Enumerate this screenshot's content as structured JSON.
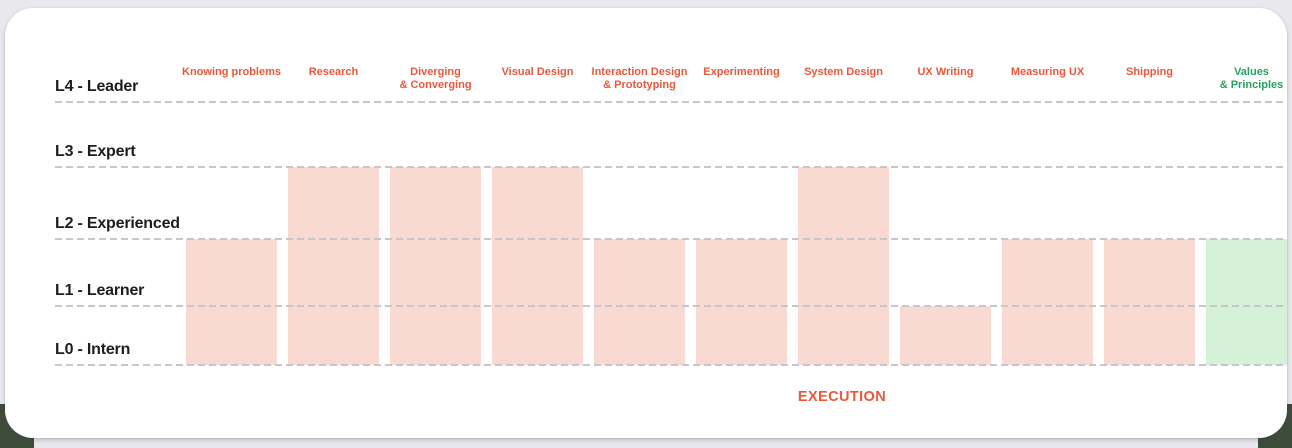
{
  "page": {
    "background_color": "#e8e8ed",
    "corner_accent_color": "#3d4d39",
    "card_color": "#ffffff"
  },
  "chart": {
    "group_label": "EXECUTION",
    "levels": [
      {
        "value": 4,
        "label": "L4 - Leader"
      },
      {
        "value": 3,
        "label": "L3 - Expert"
      },
      {
        "value": 2,
        "label": "L2 - Experienced"
      },
      {
        "value": 1,
        "label": "L1 - Learner"
      },
      {
        "value": 0,
        "label": "L0 - Intern"
      }
    ],
    "columns": [
      {
        "label": "Knowing problems",
        "lines": [
          "Knowing problems"
        ],
        "level": 2,
        "group": "execution"
      },
      {
        "label": "Research",
        "lines": [
          "Research"
        ],
        "level": 3,
        "group": "execution"
      },
      {
        "label": "Diverging & Converging",
        "lines": [
          "Diverging",
          "& Converging"
        ],
        "level": 3,
        "group": "execution"
      },
      {
        "label": "Visual Design",
        "lines": [
          "Visual Design"
        ],
        "level": 3,
        "group": "execution"
      },
      {
        "label": "Interaction Design & Prototyping",
        "lines": [
          "Interaction Design",
          "& Prototyping"
        ],
        "level": 2,
        "group": "execution"
      },
      {
        "label": "Experimenting",
        "lines": [
          "Experimenting"
        ],
        "level": 2,
        "group": "execution"
      },
      {
        "label": "System Design",
        "lines": [
          "System Design"
        ],
        "level": 3,
        "group": "execution"
      },
      {
        "label": "UX Writing",
        "lines": [
          "UX Writing"
        ],
        "level": 1,
        "group": "execution"
      },
      {
        "label": "Measuring UX",
        "lines": [
          "Measuring UX"
        ],
        "level": 2,
        "group": "execution"
      },
      {
        "label": "Shipping",
        "lines": [
          "Shipping"
        ],
        "level": 2,
        "group": "execution"
      },
      {
        "label": "Values & Principles",
        "lines": [
          "Values",
          "& Principles"
        ],
        "level": 2,
        "group": "values"
      }
    ],
    "colors": {
      "execution_bar": "#f9dad3",
      "values_bar": "#d5f1d8",
      "execution_text": "#e8593c",
      "values_text": "#28a05f",
      "level_label_text": "#1d1d1f",
      "gridline": "#c6c6cb"
    }
  },
  "chart_data": {
    "type": "bar",
    "title": "",
    "categories": [
      "Knowing problems",
      "Research",
      "Diverging & Converging",
      "Visual Design",
      "Interaction Design & Prototyping",
      "Experimenting",
      "System Design",
      "UX Writing",
      "Measuring UX",
      "Shipping",
      "Values & Principles"
    ],
    "values": [
      2,
      3,
      3,
      3,
      2,
      2,
      3,
      1,
      2,
      2,
      2
    ],
    "value_labels": [
      "L2",
      "L3",
      "L3",
      "L3",
      "L2",
      "L2",
      "L3",
      "L1",
      "L2",
      "L2",
      "L2"
    ],
    "xlabel": "",
    "ylabel": "",
    "y_ticks": [
      "L0 - Intern",
      "L1 - Learner",
      "L2 - Experienced",
      "L3 - Expert",
      "L4 - Leader"
    ],
    "ylim": [
      0,
      4
    ],
    "grid": "horizontal-dashed",
    "legend": "none",
    "bar_colors": {
      "execution_skills": "#f9dad3",
      "values_skills": "#d5f1d8"
    },
    "annotations": [
      {
        "text": "EXECUTION",
        "position": "below-axis",
        "color": "#e8593c"
      }
    ]
  }
}
